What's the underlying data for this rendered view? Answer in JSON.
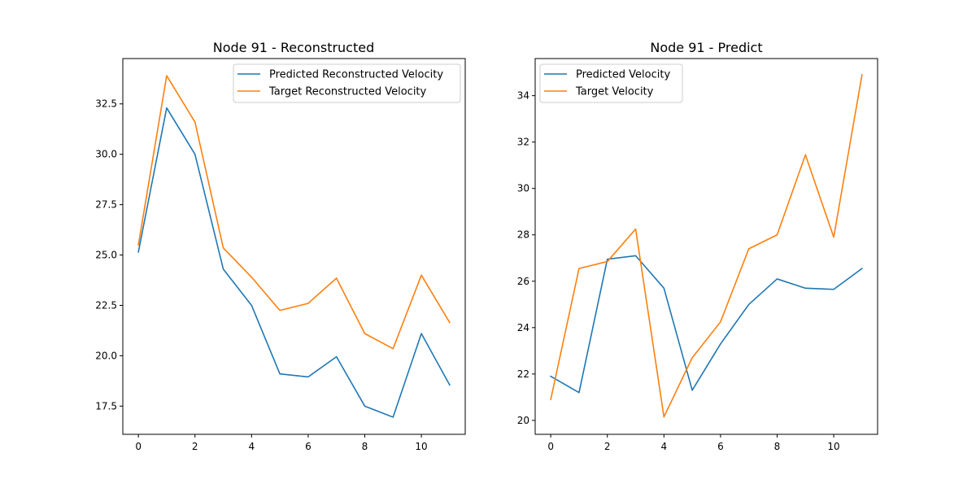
{
  "chart_data": [
    {
      "type": "line",
      "title": "Node 91 - Reconstructed",
      "xlabel": "",
      "ylabel": "",
      "x": [
        0,
        1,
        2,
        3,
        4,
        5,
        6,
        7,
        8,
        9,
        10,
        11
      ],
      "xlim": [
        -0.55,
        11.55
      ],
      "ylim": [
        16.1,
        34.75
      ],
      "xticks": [
        0,
        2,
        4,
        6,
        8,
        10
      ],
      "xtick_labels": [
        "0",
        "2",
        "4",
        "6",
        "8",
        "10"
      ],
      "yticks": [
        17.5,
        20.0,
        22.5,
        25.0,
        27.5,
        30.0,
        32.5
      ],
      "ytick_labels": [
        "17.5",
        "20.0",
        "22.5",
        "25.0",
        "27.5",
        "30.0",
        "32.5"
      ],
      "legend_position": "top-right",
      "grid": false,
      "series": [
        {
          "name": "Predicted Reconstructed Velocity",
          "color": "#1f77b4",
          "values": [
            25.15,
            32.3,
            30.0,
            24.3,
            22.5,
            19.1,
            18.95,
            19.95,
            17.5,
            16.95,
            21.1,
            18.55
          ]
        },
        {
          "name": "Target Reconstructed Velocity",
          "color": "#ff7f0e",
          "values": [
            25.5,
            33.9,
            31.6,
            25.35,
            23.9,
            22.25,
            22.6,
            23.85,
            21.1,
            20.35,
            24.0,
            21.65
          ]
        }
      ]
    },
    {
      "type": "line",
      "title": "Node 91 - Predict",
      "xlabel": "",
      "ylabel": "",
      "x": [
        0,
        1,
        2,
        3,
        4,
        5,
        6,
        7,
        8,
        9,
        10,
        11
      ],
      "xlim": [
        -0.55,
        11.55
      ],
      "ylim": [
        19.4,
        35.6
      ],
      "xticks": [
        0,
        2,
        4,
        6,
        8,
        10
      ],
      "xtick_labels": [
        "0",
        "2",
        "4",
        "6",
        "8",
        "10"
      ],
      "yticks": [
        20,
        22,
        24,
        26,
        28,
        30,
        32,
        34
      ],
      "ytick_labels": [
        "20",
        "22",
        "24",
        "26",
        "28",
        "30",
        "32",
        "34"
      ],
      "legend_position": "top-left",
      "grid": false,
      "series": [
        {
          "name": "Predicted Velocity",
          "color": "#1f77b4",
          "values": [
            21.9,
            21.2,
            26.95,
            27.1,
            25.7,
            21.3,
            23.3,
            25.0,
            26.1,
            25.7,
            25.65,
            26.55
          ]
        },
        {
          "name": "Target Velocity",
          "color": "#ff7f0e",
          "values": [
            20.9,
            26.55,
            26.85,
            28.25,
            20.15,
            22.7,
            24.25,
            27.4,
            28.0,
            31.45,
            27.9,
            34.9
          ]
        }
      ]
    }
  ]
}
